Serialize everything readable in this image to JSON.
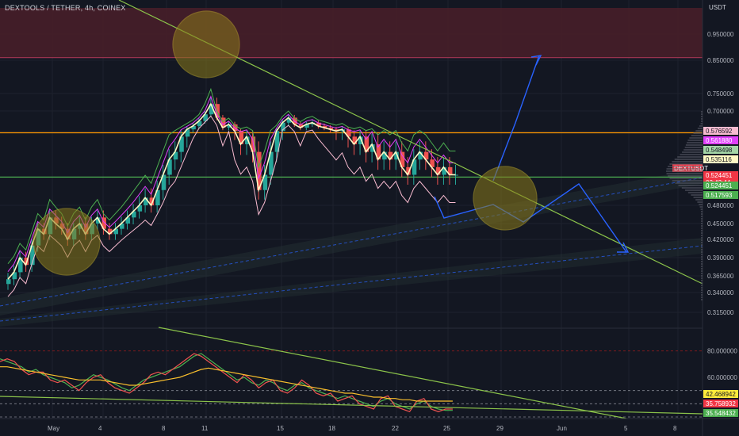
{
  "header": {
    "title": "DEXTOOLS / TETHER, 4h, COINEX",
    "currency": "USDT"
  },
  "colors": {
    "background": "#131722",
    "grid": "#1e222d",
    "bull": "#26a69a",
    "bear": "#ef5350",
    "resistance_zone": "#4a1f29",
    "orange_line": "#ff9800",
    "green_line": "#4caf50",
    "channel_fill": "#2a3a3a",
    "projection": "#2962ff",
    "circle": "#b7a328"
  },
  "chart_data": [
    {
      "type": "candlestick",
      "title": "DEXTOOLS / TETHER, 4h, COINEX",
      "ylabel": "USDT",
      "x_ticks": [
        "May",
        "4",
        "8",
        "11",
        "15",
        "18",
        "22",
        "25",
        "29",
        "Jun",
        "5",
        "8"
      ],
      "y_ticks": [
        "0.950000",
        "0.850000",
        "0.750000",
        "0.700000",
        "0.480000",
        "0.450000",
        "0.420000",
        "0.390000",
        "0.365000",
        "0.340000",
        "0.315000"
      ],
      "price_labels": [
        {
          "value": "0.576592",
          "color": "#f8bbd0"
        },
        {
          "value": "0.561880",
          "color": "#e040fb"
        },
        {
          "value": "0.548498",
          "color": "#a5d6a7"
        },
        {
          "value": "0.535116",
          "color": "#fff9c4"
        },
        {
          "value": "DEXTUSDT",
          "color": "#f23645"
        },
        {
          "value": "0.524451",
          "color": "#f23645"
        },
        {
          "value": "03:42:44",
          "color": "#f23645"
        },
        {
          "value": "0.524451",
          "color": "#4caf50"
        },
        {
          "value": "0.517593",
          "color": "#4caf50"
        }
      ],
      "series": [
        {
          "name": "close",
          "values": [
            0.36,
            0.37,
            0.39,
            0.38,
            0.41,
            0.44,
            0.43,
            0.46,
            0.45,
            0.44,
            0.42,
            0.44,
            0.45,
            0.43,
            0.45,
            0.46,
            0.44,
            0.43,
            0.44,
            0.45,
            0.46,
            0.47,
            0.48,
            0.49,
            0.48,
            0.5,
            0.52,
            0.54,
            0.55,
            0.57,
            0.59,
            0.61,
            0.64,
            0.68,
            0.72,
            0.66,
            0.6,
            0.62,
            0.58,
            0.56,
            0.57,
            0.55,
            0.5,
            0.52,
            0.55,
            0.58,
            0.63,
            0.66,
            0.62,
            0.6,
            0.62,
            0.63,
            0.61,
            0.6,
            0.59,
            0.58,
            0.59,
            0.57,
            0.56,
            0.57,
            0.55,
            0.56,
            0.54,
            0.55,
            0.54,
            0.55,
            0.53,
            0.52,
            0.54,
            0.55,
            0.54,
            0.53,
            0.52,
            0.53,
            0.52,
            0.52
          ]
        }
      ],
      "resistance_zone": [
        0.86,
        1.05
      ],
      "horizontal_levels": [
        {
          "value": 0.575,
          "color": "#ff9800"
        },
        {
          "value": 0.517,
          "color": "#4caf50"
        }
      ]
    },
    {
      "type": "line",
      "y_ticks": [
        "80.000000",
        "60.000000"
      ],
      "value_labels": [
        {
          "value": "42.468942",
          "color": "#ffeb3b"
        },
        {
          "value": "35.758932",
          "color": "#f23645"
        },
        {
          "value": "35.548432",
          "color": "#4caf50"
        }
      ],
      "levels": [
        80,
        50,
        40,
        30
      ],
      "series": [
        {
          "values": [
            74,
            72,
            70,
            68,
            64,
            66,
            62,
            60,
            58,
            56,
            52,
            54,
            58,
            62,
            60,
            58,
            55,
            52,
            50,
            54,
            58,
            60,
            62,
            64,
            66,
            68,
            72,
            76,
            78,
            74,
            70,
            66,
            62,
            58,
            60,
            56,
            54,
            58,
            56,
            52,
            50,
            54,
            56,
            52,
            50,
            48,
            46,
            44,
            46,
            44,
            42,
            40,
            38,
            42,
            44,
            40,
            38,
            36,
            40,
            42,
            38,
            36,
            35,
            35
          ]
        },
        {
          "values": [
            72,
            74,
            72,
            66,
            62,
            64,
            64,
            58,
            56,
            58,
            54,
            50,
            56,
            60,
            62,
            56,
            52,
            50,
            48,
            52,
            56,
            62,
            64,
            62,
            66,
            70,
            74,
            78,
            76,
            72,
            68,
            64,
            60,
            56,
            62,
            58,
            52,
            56,
            58,
            50,
            48,
            52,
            58,
            54,
            48,
            46,
            48,
            42,
            44,
            46,
            40,
            38,
            36,
            44,
            46,
            38,
            36,
            34,
            42,
            44,
            36,
            34,
            36,
            36
          ]
        },
        {
          "values": [
            68,
            68,
            67,
            66,
            65,
            64,
            63,
            62,
            61,
            60,
            59,
            58,
            58,
            58,
            58,
            57,
            56,
            55,
            54,
            54,
            55,
            56,
            57,
            58,
            59,
            60,
            62,
            64,
            66,
            67,
            66,
            65,
            64,
            63,
            62,
            61,
            60,
            59,
            58,
            57,
            56,
            55,
            54,
            53,
            52,
            51,
            50,
            49,
            48,
            48,
            47,
            46,
            45,
            45,
            44,
            44,
            43,
            43,
            42,
            42,
            42,
            42,
            42,
            42
          ]
        }
      ],
      "x_ticks": [
        "May",
        "4",
        "8",
        "11",
        "15",
        "18",
        "22",
        "25",
        "29",
        "Jun",
        "5",
        "8"
      ]
    }
  ]
}
